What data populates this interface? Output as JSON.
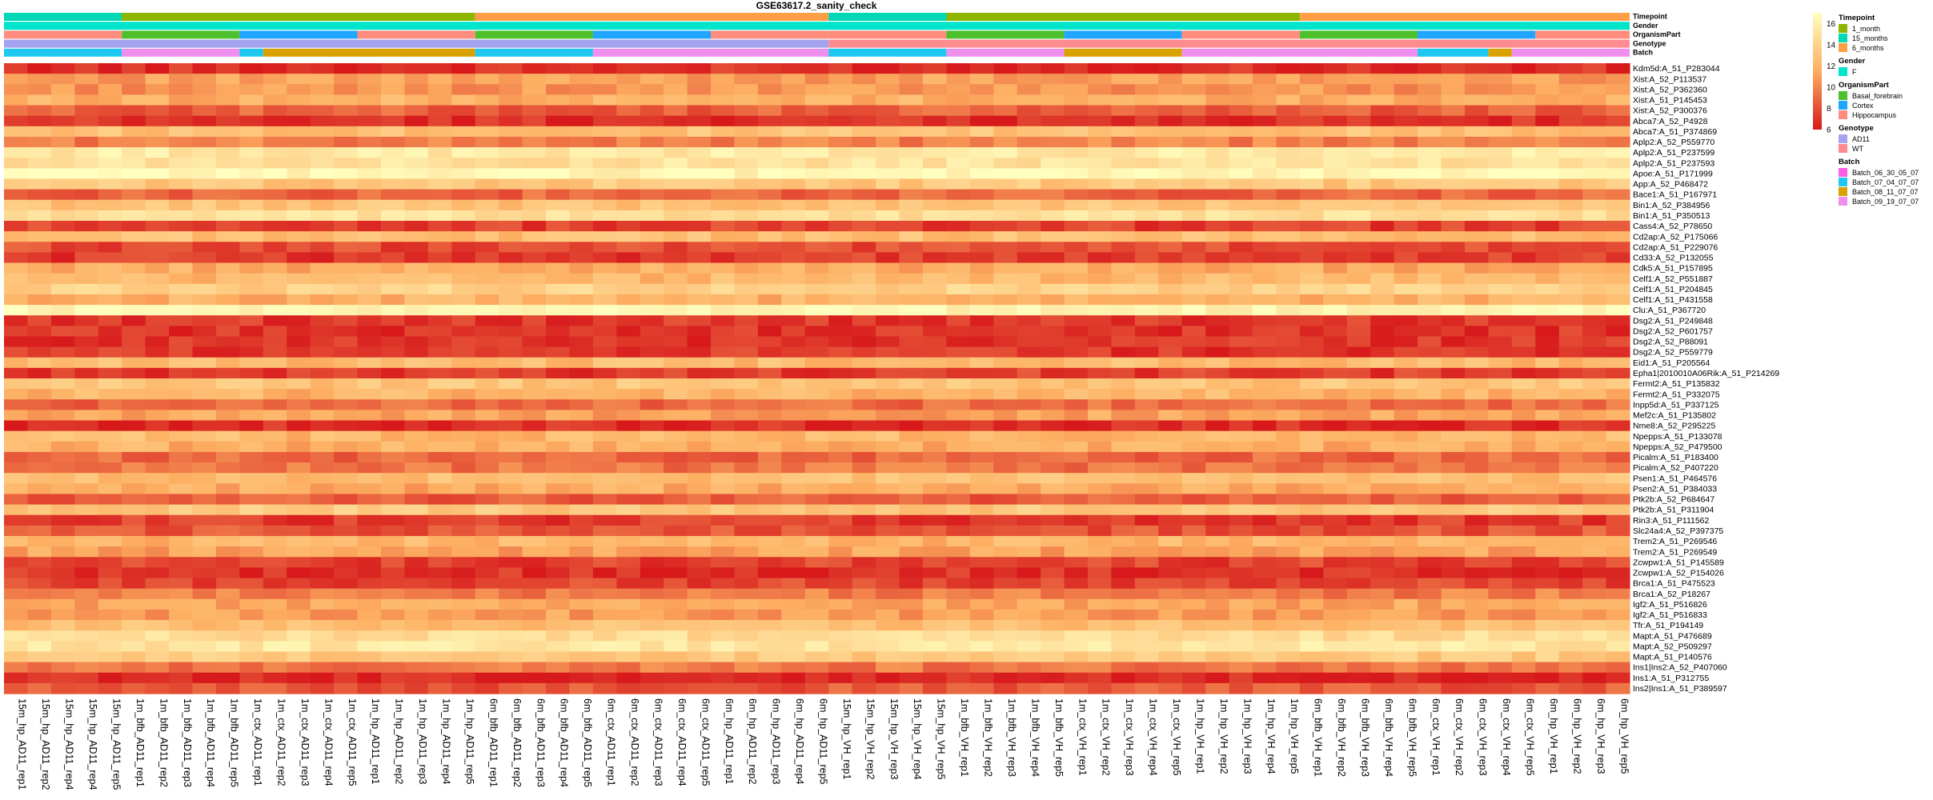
{
  "chart_data": {
    "type": "heatmap",
    "title": "GSE63617.2_sanity_check",
    "palette": [
      "#D7191C",
      "#FDAE61",
      "#FFFFBF"
    ],
    "color_scale": {
      "min": 6,
      "max": 17,
      "ticks": [
        6,
        8,
        10,
        12,
        14,
        16
      ]
    },
    "annotation_tracks": [
      {
        "name": "Timepoint",
        "legend": [
          {
            "label": "1_month",
            "color": "#8DB600"
          },
          {
            "label": "15_months",
            "color": "#00D7B5"
          },
          {
            "label": "6_months",
            "color": "#FF9F45"
          }
        ],
        "runs": [
          {
            "value": "15_months",
            "count": 5
          },
          {
            "value": "1_month",
            "count": 15
          },
          {
            "value": "6_months",
            "count": 15
          },
          {
            "value": "15_months",
            "count": 5
          },
          {
            "value": "1_month",
            "count": 15
          },
          {
            "value": "6_months",
            "count": 14
          }
        ]
      },
      {
        "name": "Gender",
        "legend": [
          {
            "label": "F",
            "color": "#00E5CC"
          }
        ],
        "runs": [
          {
            "value": "F",
            "count": 69
          }
        ]
      },
      {
        "name": "OrganismPart",
        "legend": [
          {
            "label": "Basal_forebrain",
            "color": "#4DC02B"
          },
          {
            "label": "Cortex",
            "color": "#20A6FF"
          },
          {
            "label": "Hippocampus",
            "color": "#FF8C7C"
          }
        ],
        "runs": [
          {
            "value": "Hippocampus",
            "count": 5
          },
          {
            "value": "Basal_forebrain",
            "count": 5
          },
          {
            "value": "Cortex",
            "count": 5
          },
          {
            "value": "Hippocampus",
            "count": 5
          },
          {
            "value": "Basal_forebrain",
            "count": 5
          },
          {
            "value": "Cortex",
            "count": 5
          },
          {
            "value": "Hippocampus",
            "count": 5
          },
          {
            "value": "Hippocampus",
            "count": 5
          },
          {
            "value": "Basal_forebrain",
            "count": 5
          },
          {
            "value": "Cortex",
            "count": 5
          },
          {
            "value": "Hippocampus",
            "count": 5
          },
          {
            "value": "Basal_forebrain",
            "count": 5
          },
          {
            "value": "Cortex",
            "count": 5
          },
          {
            "value": "Hippocampus",
            "count": 4
          }
        ]
      },
      {
        "name": "Genotype",
        "legend": [
          {
            "label": "AD11",
            "color": "#A3A3F0"
          },
          {
            "label": "WT",
            "color": "#FF8A90"
          }
        ],
        "runs": [
          {
            "value": "AD11",
            "count": 35
          },
          {
            "value": "WT",
            "count": 34
          }
        ]
      },
      {
        "name": "Batch",
        "legend": [
          {
            "label": "Batch_06_30_05_07",
            "color": "#FF5CE8"
          },
          {
            "label": "Batch_07_04_07_07",
            "color": "#1EC8F0"
          },
          {
            "label": "Batch_08_11_07_07",
            "color": "#D9A200"
          },
          {
            "label": "Batch_09_19_07_07",
            "color": "#EE8FEE"
          }
        ],
        "runs": [
          {
            "value": "Batch_07_04_07_07",
            "count": 5
          },
          {
            "value": "Batch_09_19_07_07",
            "count": 5
          },
          {
            "value": "Batch_07_04_07_07",
            "count": 1
          },
          {
            "value": "Batch_08_11_07_07",
            "count": 9
          },
          {
            "value": "Batch_07_04_07_07",
            "count": 5
          },
          {
            "value": "Batch_09_19_07_07",
            "count": 10
          },
          {
            "value": "Batch_07_04_07_07",
            "count": 5
          },
          {
            "value": "Batch_09_19_07_07",
            "count": 5
          },
          {
            "value": "Batch_08_11_07_07",
            "count": 5
          },
          {
            "value": "Batch_09_19_07_07",
            "count": 10
          },
          {
            "value": "Batch_07_04_07_07",
            "count": 3
          },
          {
            "value": "Batch_08_11_07_07",
            "count": 1
          },
          {
            "value": "Batch_09_19_07_07",
            "count": 5
          }
        ]
      }
    ],
    "rows": [
      {
        "label": "Kdm5d:A_51_P283044",
        "base": 6.8
      },
      {
        "label": "Xist:A_52_P113537",
        "base": 11.0
      },
      {
        "label": "Xist:A_52_P362360",
        "base": 10.6
      },
      {
        "label": "Xist:A_51_P145453",
        "base": 11.8
      },
      {
        "label": "Xist:A_52_P300376",
        "base": 8.6
      },
      {
        "label": "Abca7:A_52_P4928",
        "base": 6.8
      },
      {
        "label": "Abca7:A_51_P374869",
        "base": 12.8
      },
      {
        "label": "Aplp2:A_52_P559770",
        "base": 9.8
      },
      {
        "label": "Aplp2:A_51_P237599",
        "base": 15.5
      },
      {
        "label": "Aplp2:A_51_P237593",
        "base": 15.0
      },
      {
        "label": "Apoe:A_51_P171999",
        "base": 16.6
      },
      {
        "label": "App:A_52_P468472",
        "base": 13.2
      },
      {
        "label": "Bace1:A_51_P167971",
        "base": 8.8
      },
      {
        "label": "Bin1:A_52_P384956",
        "base": 12.9
      },
      {
        "label": "Bin1:A_51_P350513",
        "base": 14.8
      },
      {
        "label": "Cass4:A_52_P78650",
        "base": 7.4
      },
      {
        "label": "Cd2ap:A_52_P175066",
        "base": 12.6
      },
      {
        "label": "Cd2ap:A_51_P229076",
        "base": 7.8
      },
      {
        "label": "Cd33:A_52_P132055",
        "base": 7.2
      },
      {
        "label": "Cdk5:A_51_P157895",
        "base": 11.6
      },
      {
        "label": "Celf1:A_52_P551887",
        "base": 12.3
      },
      {
        "label": "Celf1:A_51_P204845",
        "base": 13.9
      },
      {
        "label": "Celf1:A_51_P431558",
        "base": 11.8
      },
      {
        "label": "Clu:A_51_P367720",
        "base": 16.3
      },
      {
        "label": "Dsg2:A_51_P249848",
        "base": 7.1
      },
      {
        "label": "Dsg2:A_52_P601757",
        "base": 6.9
      },
      {
        "label": "Dsg2:A_52_P88091",
        "base": 7.0
      },
      {
        "label": "Dsg2:A_52_P559779",
        "base": 7.1
      },
      {
        "label": "Eid1:A_51_P205564",
        "base": 12.4
      },
      {
        "label": "Epha1|2010010A06Rik:A_51_P214269",
        "base": 7.3
      },
      {
        "label": "Fermt2:A_51_P135832",
        "base": 13.0
      },
      {
        "label": "Fermt2:A_51_P332075",
        "base": 12.0
      },
      {
        "label": "Inpp5d:A_51_P337125",
        "base": 9.0
      },
      {
        "label": "Mef2c:A_51_P135802",
        "base": 11.2
      },
      {
        "label": "Nme8:A_52_P295225",
        "base": 6.6
      },
      {
        "label": "Npepps:A_51_P133078",
        "base": 12.3
      },
      {
        "label": "Npepps:A_52_P479500",
        "base": 11.7
      },
      {
        "label": "Picalm:A_51_P183400",
        "base": 8.9
      },
      {
        "label": "Picalm:A_52_P407220",
        "base": 9.4
      },
      {
        "label": "Psen1:A_51_P464576",
        "base": 12.6
      },
      {
        "label": "Psen2:A_51_P384033",
        "base": 11.5
      },
      {
        "label": "Ptk2b:A_52_P684647",
        "base": 8.5
      },
      {
        "label": "Ptk2b:A_51_P311904",
        "base": 13.3
      },
      {
        "label": "Rin3:A_51_P111562",
        "base": 7.3
      },
      {
        "label": "Slc24a4:A_52_P397375",
        "base": 8.2
      },
      {
        "label": "Trem2:A_51_P269546",
        "base": 12.1
      },
      {
        "label": "Trem2:A_51_P269549",
        "base": 11.2
      },
      {
        "label": "Zcwpw1:A_51_P145589",
        "base": 7.5
      },
      {
        "label": "Zcwpw1:A_52_P154026",
        "base": 6.8
      },
      {
        "label": "Brca1:A_51_P475523",
        "base": 7.6
      },
      {
        "label": "Brca1:A_52_P18267",
        "base": 9.7
      },
      {
        "label": "Igf2:A_51_P516826",
        "base": 11.3
      },
      {
        "label": "Igf2:A_51_P516833",
        "base": 10.9
      },
      {
        "label": "Tfr:A_51_P194149",
        "base": 12.6
      },
      {
        "label": "Mapt:A_51_P476689",
        "base": 14.6
      },
      {
        "label": "Mapt:A_52_P509297",
        "base": 15.3
      },
      {
        "label": "Mapt:A_51_P140576",
        "base": 13.4
      },
      {
        "label": "Ins1|Ins2:A_52_P407060",
        "base": 9.5
      },
      {
        "label": "Ins1:A_51_P312755",
        "base": 6.4
      },
      {
        "label": "Ins2|Ins1:A_51_P389597",
        "base": 8.3
      }
    ],
    "columns": [
      "15m_hp_AD11_rep1",
      "15m_hp_AD11_rep2",
      "15m_hp_AD11_rep4",
      "15m_hp_AD11_rep4",
      "15m_hp_AD11_rep5",
      "1m_bfb_AD11_rep1",
      "1m_bfb_AD11_rep2",
      "1m_bfb_AD11_rep3",
      "1m_bfb_AD11_rep4",
      "1m_bfb_AD11_rep5",
      "1m_ctx_AD11_rep1",
      "1m_ctx_AD11_rep2",
      "1m_ctx_AD11_rep3",
      "1m_ctx_AD11_rep4",
      "1m_ctx_AD11_rep5",
      "1m_hp_AD11_rep1",
      "1m_hp_AD11_rep2",
      "1m_hp_AD11_rep3",
      "1m_hp_AD11_rep4",
      "1m_hp_AD11_rep5",
      "6m_bfb_AD11_rep1",
      "6m_bfb_AD11_rep2",
      "6m_bfb_AD11_rep3",
      "6m_bfb_AD11_rep4",
      "6m_bfb_AD11_rep5",
      "6m_ctx_AD11_rep1",
      "6m_ctx_AD11_rep2",
      "6m_ctx_AD11_rep3",
      "6m_ctx_AD11_rep4",
      "6m_ctx_AD11_rep5",
      "6m_hp_AD11_rep1",
      "6m_hp_AD11_rep2",
      "6m_hp_AD11_rep3",
      "6m_hp_AD11_rep4",
      "6m_hp_AD11_rep5",
      "15m_hp_VH_rep1",
      "15m_hp_VH_rep2",
      "15m_hp_VH_rep3",
      "15m_hp_VH_rep4",
      "15m_hp_VH_rep5",
      "1m_bfb_VH_rep1",
      "1m_bfb_VH_rep2",
      "1m_bfb_VH_rep3",
      "1m_bfb_VH_rep4",
      "1m_bfb_VH_rep5",
      "1m_ctx_VH_rep1",
      "1m_ctx_VH_rep2",
      "1m_ctx_VH_rep3",
      "1m_ctx_VH_rep4",
      "1m_ctx_VH_rep5",
      "1m_hp_VH_rep1",
      "1m_hp_VH_rep2",
      "1m_hp_VH_rep3",
      "1m_hp_VH_rep4",
      "1m_hp_VH_rep5",
      "6m_bfb_VH_rep1",
      "6m_bfb_VH_rep2",
      "6m_bfb_VH_rep3",
      "6m_bfb_VH_rep4",
      "6m_bfb_VH_rep5",
      "6m_ctx_VH_rep1",
      "6m_ctx_VH_rep2",
      "6m_ctx_VH_rep3",
      "6m_ctx_VH_rep4",
      "6m_ctx_VH_rep5",
      "6m_hp_VH_rep1",
      "6m_hp_VH_rep2",
      "6m_hp_VH_rep3",
      "6m_hp_VH_rep5"
    ]
  }
}
